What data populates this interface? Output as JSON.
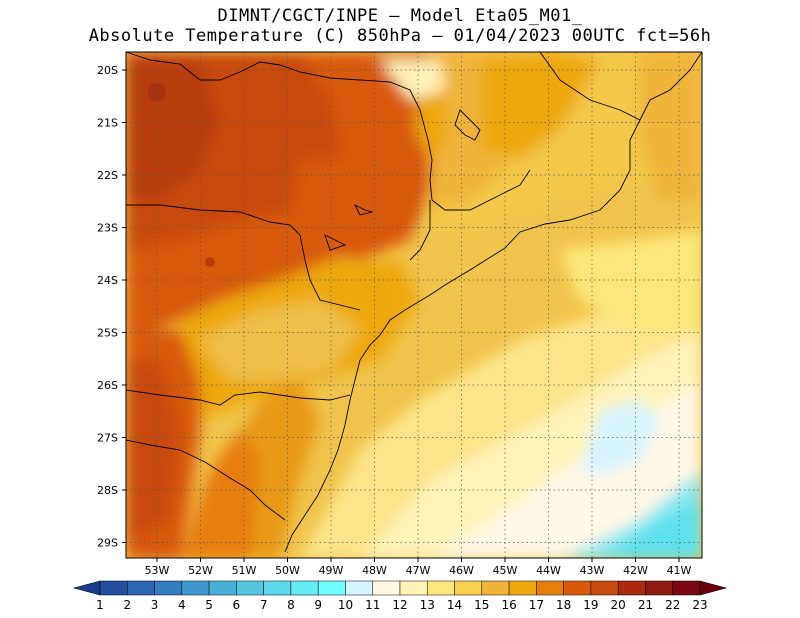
{
  "header": {
    "line1": "DIMNT/CGCT/INPE –  Model Eta05_M01_",
    "line2": "Absolute Temperature (C) 850hPa –  01/04/2023 00UTC fct=56h"
  },
  "map": {
    "lat_labels": [
      "20S",
      "21S",
      "22S",
      "23S",
      "24S",
      "25S",
      "26S",
      "27S",
      "28S",
      "29S"
    ],
    "lon_labels": [
      "53W",
      "52W",
      "51W",
      "50W",
      "49W",
      "48W",
      "47W",
      "46W",
      "45W",
      "44W",
      "43W",
      "42W",
      "41W"
    ],
    "gridlines": "dotted",
    "coastline_color": "#000000"
  },
  "colorbar": {
    "labels": [
      "1",
      "2",
      "3",
      "4",
      "5",
      "6",
      "7",
      "8",
      "9",
      "10",
      "11",
      "12",
      "13",
      "14",
      "15",
      "16",
      "17",
      "18",
      "19",
      "20",
      "21",
      "22",
      "23"
    ],
    "colors": [
      "#1a3a8c",
      "#214f9e",
      "#2b67b0",
      "#357fc0",
      "#3f97cc",
      "#4aafd7",
      "#55c6e0",
      "#5cd9ea",
      "#64ecf5",
      "#70ffff",
      "#d8f4ff",
      "#fff8e6",
      "#fff3b8",
      "#fde77a",
      "#f8d24e",
      "#f0b43a",
      "#eda80c",
      "#e67e0a",
      "#d85a08",
      "#c84a10",
      "#aa2a10",
      "#8f1a10",
      "#7a0814",
      "#6a0010"
    ]
  }
}
